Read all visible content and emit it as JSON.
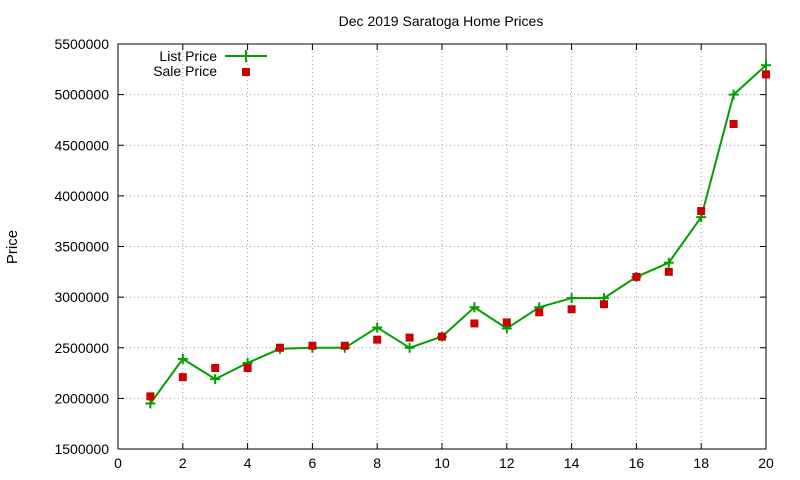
{
  "chart_data": {
    "type": "line",
    "title": "Dec 2019 Saratoga Home Prices",
    "xlabel": "",
    "ylabel": "Price",
    "xlim": [
      0,
      20
    ],
    "ylim": [
      1500000,
      5500000
    ],
    "xticks": [
      0,
      2,
      4,
      6,
      8,
      10,
      12,
      14,
      16,
      18,
      20
    ],
    "yticks": [
      1500000,
      2000000,
      2500000,
      3000000,
      3500000,
      4000000,
      4500000,
      5000000,
      5500000
    ],
    "grid": true,
    "legend_position": "top-left",
    "series": [
      {
        "name": "List Price",
        "style": "line-with-plus-markers",
        "color": "#00a000",
        "x": [
          1,
          2,
          3,
          4,
          5,
          6,
          7,
          8,
          9,
          10,
          11,
          12,
          13,
          14,
          15,
          16,
          17,
          18,
          19,
          20
        ],
        "values": [
          1950000,
          2390000,
          2190000,
          2350000,
          2490000,
          2500000,
          2500000,
          2700000,
          2500000,
          2610000,
          2900000,
          2690000,
          2900000,
          2990000,
          2990000,
          3200000,
          3340000,
          3790000,
          5000000,
          5290000
        ]
      },
      {
        "name": "Sale Price",
        "style": "square-markers",
        "color": "#cc0000",
        "x": [
          1,
          2,
          3,
          4,
          5,
          6,
          7,
          8,
          9,
          10,
          11,
          12,
          13,
          14,
          15,
          16,
          17,
          18,
          19,
          20
        ],
        "values": [
          2020000,
          2210000,
          2300000,
          2300000,
          2500000,
          2520000,
          2520000,
          2580000,
          2600000,
          2610000,
          2740000,
          2750000,
          2850000,
          2880000,
          2930000,
          3200000,
          3250000,
          3850000,
          4710000,
          5200000
        ]
      }
    ]
  }
}
